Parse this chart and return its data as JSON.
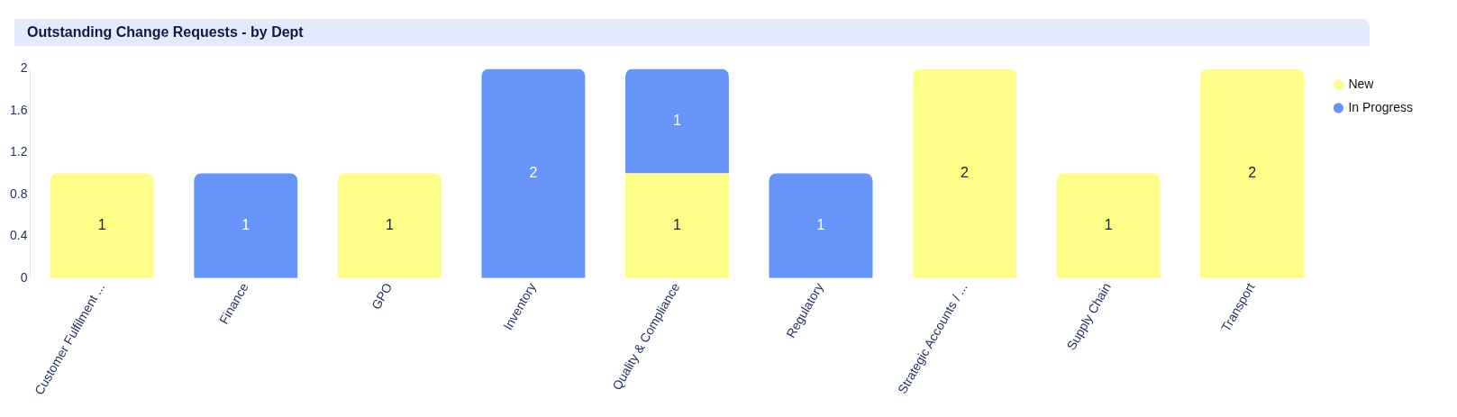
{
  "chart_data": {
    "type": "bar",
    "title": "Outstanding Change Requests -  by Dept",
    "categories": [
      "Customer Fulfilment ...",
      "Finance",
      "GPO",
      "Inventory",
      "Quality & Compliance",
      "Regulatory",
      "Strategic Accounts / ...",
      "Supply Chain",
      "Transport"
    ],
    "series": [
      {
        "name": "New",
        "color": "#fdfd88",
        "values": [
          1,
          null,
          1,
          null,
          1,
          null,
          2,
          1,
          2
        ]
      },
      {
        "name": "In Progress",
        "color": "#6794f9",
        "values": [
          null,
          1,
          null,
          2,
          1,
          1,
          null,
          null,
          null
        ]
      }
    ],
    "stacked": true,
    "ylim": [
      0,
      2
    ],
    "yticks": [
      0,
      0.4,
      0.8,
      1.2,
      1.6,
      2
    ],
    "grid": false,
    "legend": "top right",
    "data_labels": true
  }
}
